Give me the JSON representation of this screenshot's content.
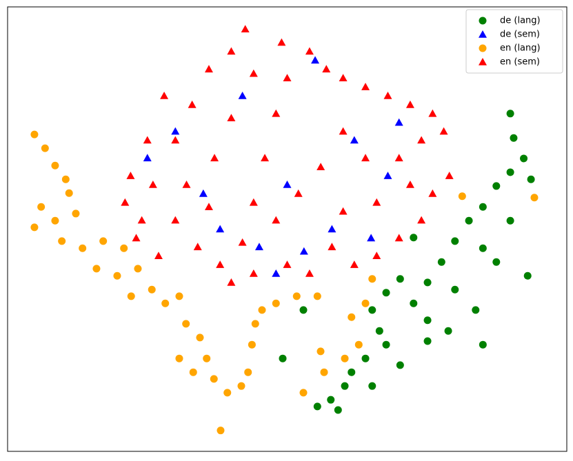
{
  "chart_data": {
    "type": "scatter",
    "xlim": [
      0,
      100
    ],
    "ylim": [
      0,
      100
    ],
    "legend": "upper right",
    "series": [
      {
        "name": "de (lang)",
        "color": "green",
        "marker": "circle",
        "x": [
          89.9,
          90.5,
          92.3,
          93.6,
          89.9,
          87.4,
          85,
          89.9,
          82.5,
          80,
          85,
          87.4,
          93,
          77.6,
          75.1,
          80,
          83.7,
          78.8,
          75.1,
          72.6,
          70.2,
          67.7,
          65.2,
          66.5,
          67.7,
          64,
          61.5,
          60.3,
          57.8,
          55.4,
          59.1,
          52.9,
          49.2,
          72.6,
          70.2,
          65.2,
          85,
          75.1
        ],
        "y": [
          76,
          70.5,
          65.9,
          61.2,
          62.8,
          59.7,
          55,
          51.9,
          51.9,
          47.3,
          45.7,
          42.6,
          39.5,
          42.6,
          38,
          36.4,
          31.8,
          27.1,
          24.8,
          33.3,
          38.8,
          35.7,
          31.8,
          27.1,
          24,
          20.9,
          17.8,
          14.7,
          11.6,
          10.1,
          9.3,
          31.8,
          20.9,
          48.1,
          19.4,
          14.7,
          24,
          29.5
        ]
      },
      {
        "name": "de (sem)",
        "color": "blue",
        "marker": "triangle",
        "x": [
          30,
          35,
          42,
          50,
          55,
          58,
          62,
          68,
          45,
          38,
          53,
          70,
          25,
          48,
          65
        ],
        "y": [
          72,
          58,
          80,
          60,
          88,
          50,
          70,
          62,
          46,
          50,
          45,
          74,
          66,
          40,
          48
        ]
      },
      {
        "name": "en (lang)",
        "color": "orange",
        "marker": "circle",
        "x": [
          4.8,
          6.7,
          8.5,
          10.4,
          11,
          6,
          4.8,
          8.5,
          12.2,
          9.7,
          13.4,
          17.1,
          20.8,
          15.9,
          19.6,
          23.3,
          22.1,
          25.8,
          28.2,
          30.7,
          31.9,
          34.4,
          30.7,
          33.2,
          35.6,
          36.9,
          39.3,
          41.8,
          43,
          43.7,
          44.3,
          45.5,
          48,
          51.7,
          55.4,
          52.9,
          56.6,
          55.98,
          61.5,
          65.2,
          64,
          81.3,
          94.2,
          38.1,
          60.3,
          62.8
        ],
        "y": [
          71.3,
          68.2,
          64.3,
          61.2,
          58.1,
          55,
          50.4,
          51.9,
          53.5,
          47.3,
          45.7,
          47.3,
          45.7,
          41.1,
          39.5,
          41.1,
          34.9,
          36.4,
          33.3,
          34.9,
          28.7,
          25.6,
          20.9,
          17.8,
          20.9,
          16.3,
          13.2,
          14.7,
          17.8,
          24,
          28.7,
          31.8,
          33.3,
          34.9,
          34.9,
          13.2,
          17.8,
          22.5,
          30.2,
          38.8,
          33.3,
          57.4,
          57.1,
          4.7,
          20.9,
          24
        ]
      },
      {
        "name": "en (sem)",
        "color": "red",
        "marker": "triangle",
        "x": [
          28,
          25,
          22,
          21,
          23,
          27,
          30,
          32,
          30,
          33,
          36,
          40,
          42.5,
          44,
          40,
          37,
          36,
          34,
          38,
          42,
          44,
          46,
          48,
          50,
          49,
          54,
          57,
          60,
          64,
          68,
          72,
          76,
          78,
          74,
          70,
          72,
          76,
          79,
          74,
          70,
          66,
          62,
          58,
          54,
          50,
          48,
          52,
          56,
          60,
          64,
          66,
          60,
          44,
          40,
          26,
          24
        ],
        "y": [
          80,
          70,
          62,
          56,
          48,
          44,
          52,
          60,
          70,
          78,
          86,
          90,
          95,
          85,
          75,
          66,
          55,
          46,
          42,
          47,
          56,
          66,
          76,
          84,
          92,
          90,
          86,
          84,
          82,
          80,
          78,
          76,
          72,
          70,
          66,
          60,
          58,
          62,
          52,
          48,
          44,
          42,
          46,
          40,
          42,
          52,
          58,
          64,
          72,
          66,
          56,
          54,
          40,
          38,
          60,
          52
        ]
      }
    ]
  }
}
